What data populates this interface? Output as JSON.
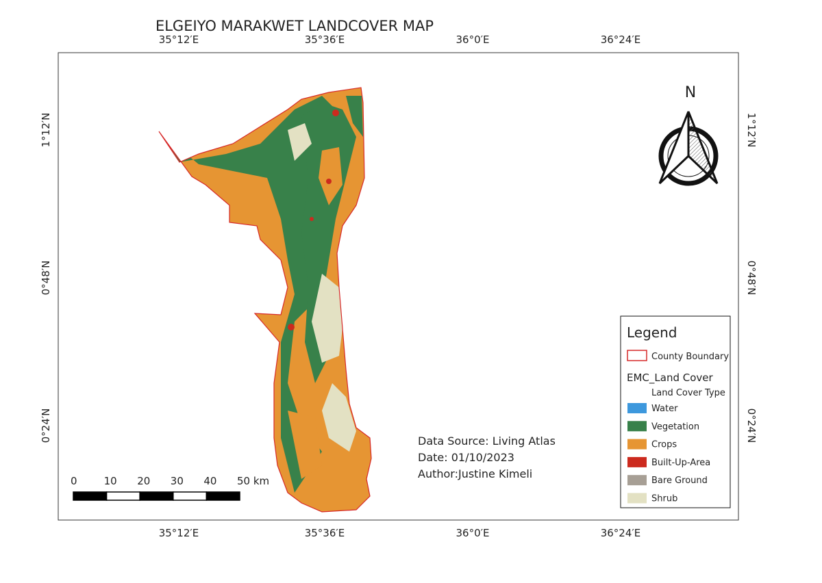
{
  "title": "ELGEIYO MARAKWET LANDCOVER MAP",
  "graticule": {
    "longitudes": [
      "35°12′E",
      "35°36′E",
      "36°0′E",
      "36°24′E"
    ],
    "latitudes": [
      "1°12′N",
      "0°48′N",
      "0°24′N"
    ]
  },
  "north_arrow": {
    "label": "N"
  },
  "scale_bar": {
    "labels": [
      "0",
      "10",
      "20",
      "30",
      "40",
      "50 km"
    ]
  },
  "info": {
    "lines": [
      "Data Source: Living Atlas",
      "Date: 01/10/2023",
      "Author:Justine Kimeli"
    ]
  },
  "legend": {
    "title": "Legend",
    "boundary": {
      "label": "County Boundary",
      "color": "#d62828"
    },
    "layer": "EMC_Land Cover",
    "field": "Land Cover Type",
    "items": [
      {
        "label": "Water",
        "color": "#3d98dd"
      },
      {
        "label": "Vegetation",
        "color": "#38814a"
      },
      {
        "label": "Crops",
        "color": "#e69533"
      },
      {
        "label": "Built-Up-Area",
        "color": "#cc2a1e"
      },
      {
        "label": "Bare Ground",
        "color": "#a79f95"
      },
      {
        "label": "Shrub",
        "color": "#e3e1c3"
      }
    ]
  }
}
